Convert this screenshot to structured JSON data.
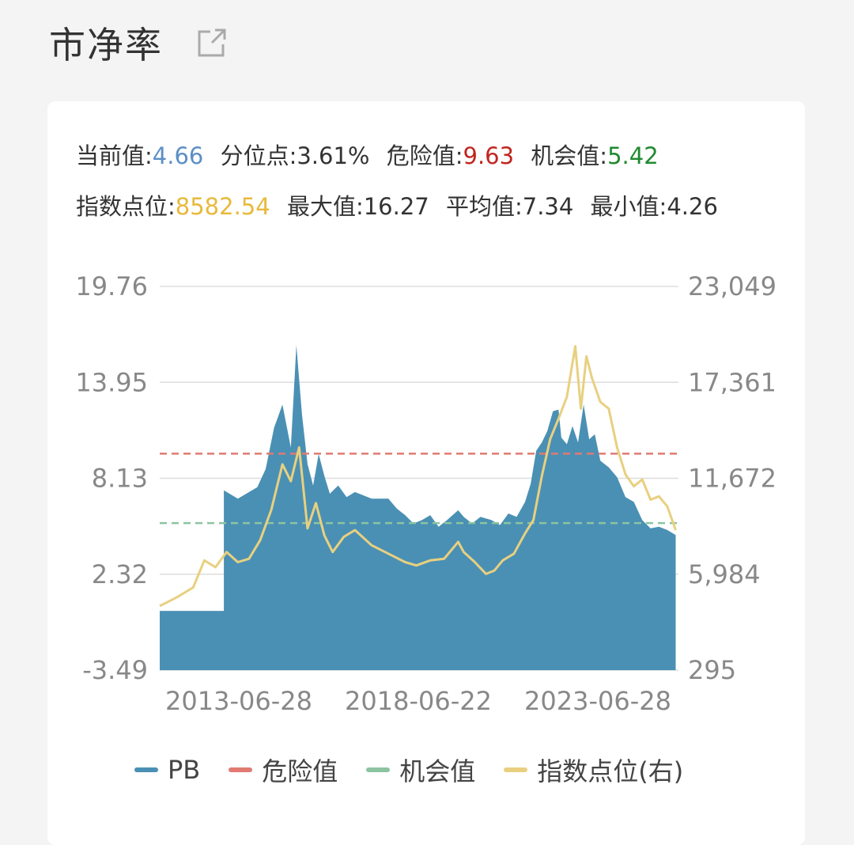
{
  "header": {
    "title": "市净率",
    "icon": "external-link-icon"
  },
  "stats": {
    "current_label": "当前值:",
    "current_value": "4.66",
    "percentile_label": "分位点:",
    "percentile_value": "3.61%",
    "danger_label": "危险值:",
    "danger_value": "9.63",
    "opportunity_label": "机会值:",
    "opportunity_value": "5.42",
    "index_label": "指数点位:",
    "index_value": "8582.54",
    "max_label": "最大值:",
    "max_value": "16.27",
    "avg_label": "平均值:",
    "avg_value": "7.34",
    "min_label": "最小值:",
    "min_value": "4.26"
  },
  "colors": {
    "current": "#5b8fc7",
    "danger": "#c0261f",
    "opportunity": "#1e8a2e",
    "index": "#e8b93a",
    "pb_fill": "#4a90b4",
    "danger_line": "#e07a72",
    "opportunity_line": "#8cc4a0",
    "index_line": "#e8d080"
  },
  "chart_data": {
    "type": "area",
    "y_left": {
      "ticks": [
        "19.76",
        "13.95",
        "8.13",
        "2.32",
        "-3.49"
      ],
      "min": -3.49,
      "max": 19.76
    },
    "y_right": {
      "ticks": [
        "23,049",
        "17,361",
        "11,672",
        "5,984",
        "295"
      ],
      "min": 295,
      "max": 23049
    },
    "x_ticks": [
      "2013-06-28",
      "2018-06-22",
      "2023-06-28"
    ],
    "legend": [
      "PB",
      "危险值",
      "机会值",
      "指数点位(右)"
    ],
    "danger": 9.63,
    "opportunity": 5.42,
    "series": [
      {
        "name": "PB",
        "axis": "left",
        "type": "area",
        "points": [
          [
            "2011-02",
            0.1
          ],
          [
            "2013-01",
            0.1
          ],
          [
            "2013-01",
            7.4
          ],
          [
            "2013-06",
            6.9
          ],
          [
            "2014-01",
            7.6
          ],
          [
            "2014-04",
            8.7
          ],
          [
            "2014-07",
            11.2
          ],
          [
            "2014-10",
            12.6
          ],
          [
            "2015-01",
            10.0
          ],
          [
            "2015-03",
            16.2
          ],
          [
            "2015-05",
            12.0
          ],
          [
            "2015-07",
            9.0
          ],
          [
            "2015-09",
            7.7
          ],
          [
            "2015-11",
            9.6
          ],
          [
            "2016-01",
            8.3
          ],
          [
            "2016-03",
            7.2
          ],
          [
            "2016-06",
            7.7
          ],
          [
            "2016-09",
            7.0
          ],
          [
            "2016-12",
            7.3
          ],
          [
            "2017-06",
            6.9
          ],
          [
            "2017-12",
            6.9
          ],
          [
            "2018-03",
            6.3
          ],
          [
            "2018-06",
            5.9
          ],
          [
            "2018-09",
            5.4
          ],
          [
            "2018-12",
            5.6
          ],
          [
            "2019-03",
            5.9
          ],
          [
            "2019-06",
            5.2
          ],
          [
            "2019-09",
            5.6
          ],
          [
            "2020-01",
            6.2
          ],
          [
            "2020-03",
            5.8
          ],
          [
            "2020-06",
            5.4
          ],
          [
            "2020-09",
            5.8
          ],
          [
            "2021-01",
            5.6
          ],
          [
            "2021-04",
            5.3
          ],
          [
            "2021-07",
            6.0
          ],
          [
            "2021-10",
            5.8
          ],
          [
            "2022-01",
            6.7
          ],
          [
            "2022-03",
            7.8
          ],
          [
            "2022-05",
            9.8
          ],
          [
            "2022-07",
            10.3
          ],
          [
            "2022-09",
            11.0
          ],
          [
            "2022-11",
            12.2
          ],
          [
            "2023-01",
            12.3
          ],
          [
            "2023-02",
            10.6
          ],
          [
            "2023-04",
            10.2
          ],
          [
            "2023-06",
            11.3
          ],
          [
            "2023-08",
            10.3
          ],
          [
            "2023-10",
            12.6
          ],
          [
            "2023-12",
            10.5
          ],
          [
            "2024-02",
            10.8
          ],
          [
            "2024-04",
            9.2
          ],
          [
            "2024-07",
            8.8
          ],
          [
            "2024-10",
            8.2
          ],
          [
            "2025-01",
            7.0
          ],
          [
            "2025-04",
            6.7
          ],
          [
            "2025-07",
            5.6
          ],
          [
            "2025-10",
            5.1
          ],
          [
            "2026-01",
            5.2
          ],
          [
            "2026-04",
            5.0
          ],
          [
            "2026-07",
            4.7
          ]
        ]
      },
      {
        "name": "危险值",
        "axis": "left",
        "type": "dashed",
        "value": 9.63
      },
      {
        "name": "机会值",
        "axis": "left",
        "type": "dashed",
        "value": 5.42
      },
      {
        "name": "指数点位(右)",
        "axis": "right",
        "type": "line",
        "points": [
          [
            "2011-02",
            4100
          ],
          [
            "2011-08",
            4600
          ],
          [
            "2012-02",
            5200
          ],
          [
            "2012-06",
            6800
          ],
          [
            "2012-10",
            6400
          ],
          [
            "2013-02",
            7300
          ],
          [
            "2013-06",
            6700
          ],
          [
            "2013-10",
            6900
          ],
          [
            "2014-02",
            8000
          ],
          [
            "2014-06",
            9800
          ],
          [
            "2014-10",
            12500
          ],
          [
            "2015-01",
            11500
          ],
          [
            "2015-04",
            13500
          ],
          [
            "2015-07",
            8700
          ],
          [
            "2015-10",
            10200
          ],
          [
            "2016-01",
            8300
          ],
          [
            "2016-04",
            7300
          ],
          [
            "2016-08",
            8200
          ],
          [
            "2016-12",
            8600
          ],
          [
            "2017-06",
            7700
          ],
          [
            "2017-12",
            7200
          ],
          [
            "2018-06",
            6700
          ],
          [
            "2018-10",
            6500
          ],
          [
            "2019-03",
            6800
          ],
          [
            "2019-08",
            6900
          ],
          [
            "2020-01",
            7900
          ],
          [
            "2020-03",
            7300
          ],
          [
            "2020-07",
            6700
          ],
          [
            "2020-11",
            6000
          ],
          [
            "2021-02",
            6200
          ],
          [
            "2021-05",
            6800
          ],
          [
            "2021-09",
            7200
          ],
          [
            "2022-01",
            8400
          ],
          [
            "2022-04",
            9200
          ],
          [
            "2022-07",
            11800
          ],
          [
            "2022-10",
            14000
          ],
          [
            "2023-01",
            15200
          ],
          [
            "2023-04",
            16500
          ],
          [
            "2023-07",
            19500
          ],
          [
            "2023-09",
            15800
          ],
          [
            "2023-11",
            18900
          ],
          [
            "2024-01",
            17600
          ],
          [
            "2024-04",
            16200
          ],
          [
            "2024-07",
            15800
          ],
          [
            "2024-10",
            13500
          ],
          [
            "2025-01",
            11900
          ],
          [
            "2025-04",
            11200
          ],
          [
            "2025-07",
            11600
          ],
          [
            "2025-10",
            10400
          ],
          [
            "2026-01",
            10600
          ],
          [
            "2026-04",
            10000
          ],
          [
            "2026-07",
            8600
          ]
        ]
      }
    ]
  }
}
